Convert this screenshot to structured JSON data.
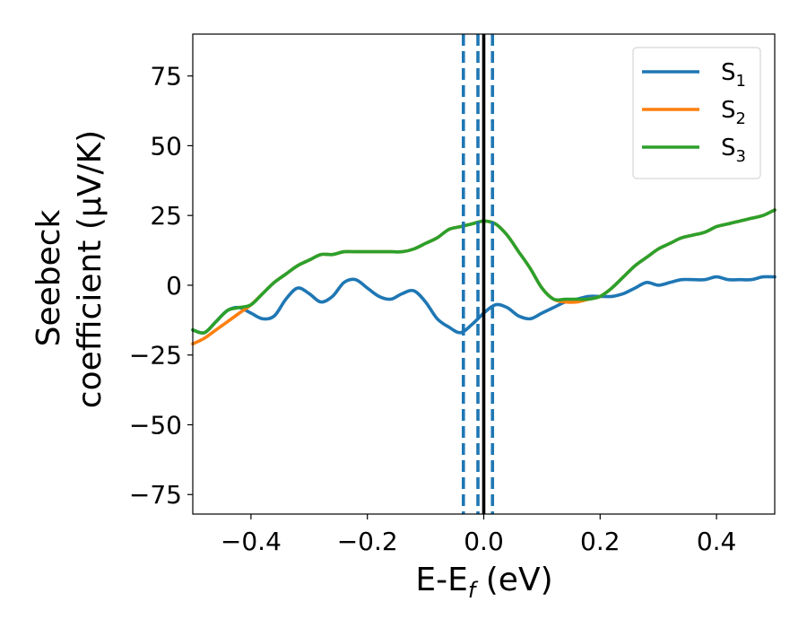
{
  "chart_data": {
    "type": "line",
    "xlabel": "E-E_f (eV)",
    "ylabel": "Seebeck coefficient (μV/K)",
    "xlabel_parts": {
      "base": "E-E",
      "sub": "f",
      "rest": " (eV)"
    },
    "ylabel_lines": [
      "Seebeck",
      "coefficient  (μV/K)"
    ],
    "xlim": [
      -0.5,
      0.5
    ],
    "ylim": [
      -82,
      90
    ],
    "xticks": [
      -0.4,
      -0.2,
      0.0,
      0.2,
      0.4
    ],
    "xtick_labels": [
      "−0.4",
      "−0.2",
      "0.0",
      "0.2",
      "0.4"
    ],
    "yticks": [
      75,
      50,
      25,
      0,
      -25,
      -50,
      -75
    ],
    "ytick_labels": [
      "75",
      "50",
      "25",
      "0",
      "−25",
      "−50",
      "−75"
    ],
    "grid": false,
    "legend_position": "top-right",
    "vlines": [
      {
        "x": 0.0,
        "color": "#000000",
        "style": "solid"
      },
      {
        "x": -0.035,
        "color": "#1f77b4",
        "style": "dashed"
      },
      {
        "x": -0.01,
        "color": "#1f77b4",
        "style": "dashed"
      },
      {
        "x": 0.015,
        "color": "#1f77b4",
        "style": "dashed"
      }
    ],
    "series": [
      {
        "name": "S1",
        "legend_base": "S",
        "legend_sub": "1",
        "color": "#1f77b4",
        "x": [
          -0.5,
          -0.48,
          -0.46,
          -0.44,
          -0.42,
          -0.4,
          -0.38,
          -0.36,
          -0.34,
          -0.32,
          -0.3,
          -0.28,
          -0.26,
          -0.24,
          -0.22,
          -0.2,
          -0.18,
          -0.16,
          -0.14,
          -0.12,
          -0.1,
          -0.08,
          -0.06,
          -0.04,
          -0.02,
          0.0,
          0.02,
          0.04,
          0.06,
          0.08,
          0.1,
          0.12,
          0.14,
          0.16,
          0.18,
          0.2,
          0.22,
          0.24,
          0.26,
          0.28,
          0.3,
          0.32,
          0.34,
          0.36,
          0.38,
          0.4,
          0.42,
          0.44,
          0.46,
          0.48,
          0.5
        ],
        "values": [
          -16,
          -17,
          -13,
          -9,
          -8,
          -10,
          -12,
          -11,
          -5,
          -1,
          -3,
          -6,
          -4,
          1,
          2,
          -1,
          -4,
          -5,
          -3,
          -2,
          -6,
          -12,
          -15,
          -17,
          -14,
          -10,
          -7,
          -8,
          -11,
          -12,
          -10,
          -8,
          -6,
          -5,
          -4,
          -4,
          -4,
          -3,
          -1,
          1,
          0,
          1,
          2,
          2,
          2,
          3,
          2,
          2,
          2,
          3,
          3
        ]
      },
      {
        "name": "S2",
        "legend_base": "S",
        "legend_sub": "2",
        "color": "#ff7f0e",
        "x": [
          -0.5,
          -0.48,
          -0.46,
          -0.44,
          -0.42,
          -0.4,
          -0.38,
          -0.36,
          -0.34,
          -0.32,
          -0.3,
          -0.28,
          -0.26,
          -0.24,
          -0.22,
          -0.2,
          -0.18,
          -0.16,
          -0.14,
          -0.12,
          -0.1,
          -0.08,
          -0.06,
          -0.04,
          -0.02,
          0.0,
          0.02,
          0.04,
          0.06,
          0.08,
          0.1,
          0.12,
          0.14,
          0.16,
          0.18,
          0.2,
          0.22,
          0.24,
          0.26,
          0.28,
          0.3,
          0.32,
          0.34,
          0.36,
          0.38,
          0.4,
          0.42,
          0.44,
          0.46,
          0.48,
          0.5
        ],
        "values": [
          -21,
          -19,
          -16,
          -13,
          -10,
          -7,
          -3,
          1,
          4,
          7,
          9,
          11,
          11,
          12,
          12,
          12,
          12,
          12,
          12,
          13,
          15,
          17,
          20,
          21,
          22,
          23,
          22,
          18,
          12,
          6,
          -1,
          -5,
          -6,
          -6,
          -5,
          -4,
          -1,
          3,
          7,
          10,
          13,
          15,
          17,
          18,
          19,
          21,
          22,
          23,
          24,
          25,
          27
        ]
      },
      {
        "name": "S3",
        "legend_base": "S",
        "legend_sub": "3",
        "color": "#2ca02c",
        "x": [
          -0.5,
          -0.48,
          -0.46,
          -0.44,
          -0.42,
          -0.4,
          -0.38,
          -0.36,
          -0.34,
          -0.32,
          -0.3,
          -0.28,
          -0.26,
          -0.24,
          -0.22,
          -0.2,
          -0.18,
          -0.16,
          -0.14,
          -0.12,
          -0.1,
          -0.08,
          -0.06,
          -0.04,
          -0.02,
          0.0,
          0.02,
          0.04,
          0.06,
          0.08,
          0.1,
          0.12,
          0.14,
          0.16,
          0.18,
          0.2,
          0.22,
          0.24,
          0.26,
          0.28,
          0.3,
          0.32,
          0.34,
          0.36,
          0.38,
          0.4,
          0.42,
          0.44,
          0.46,
          0.48,
          0.5
        ],
        "values": [
          -16,
          -17,
          -13,
          -9,
          -8,
          -7,
          -3,
          1,
          4,
          7,
          9,
          11,
          11,
          12,
          12,
          12,
          12,
          12,
          12,
          13,
          15,
          17,
          20,
          21,
          22,
          23,
          22,
          18,
          12,
          6,
          -1,
          -5,
          -5,
          -5,
          -5,
          -4,
          -1,
          3,
          7,
          10,
          13,
          15,
          17,
          18,
          19,
          21,
          22,
          23,
          24,
          25,
          27
        ]
      }
    ]
  }
}
